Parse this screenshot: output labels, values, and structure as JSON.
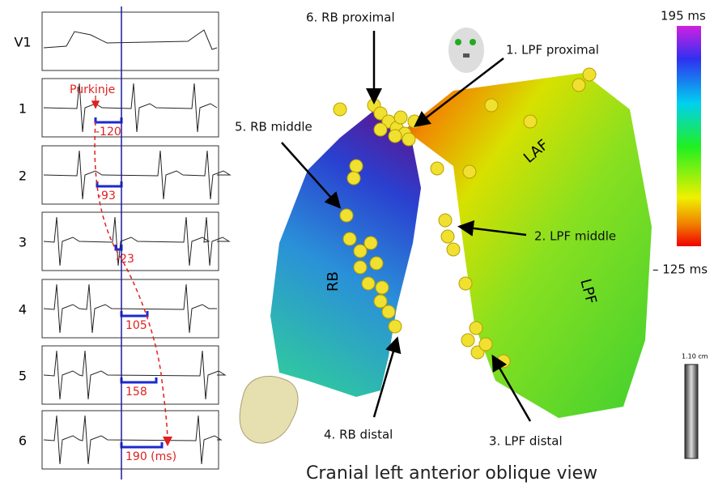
{
  "ecg": {
    "leads": [
      "V1",
      "1",
      "2",
      "3",
      "4",
      "5",
      "6"
    ],
    "marker": "Purkinje",
    "intervals": [
      "-120",
      "-93",
      "-23",
      "105",
      "158",
      "190 (ms)"
    ]
  },
  "map": {
    "labels": [
      "6. RB proximal",
      "1. LPF proximal",
      "5. RB middle",
      "2. LPF middle",
      "3. LPF distal",
      "4. RB distal"
    ],
    "regions": [
      "LAF",
      "LPF",
      "RB"
    ],
    "colorbar": {
      "max": "195 ms",
      "min": "– 125 ms"
    },
    "scale": "1.10 cm",
    "caption": "Cranial left anterior oblique view"
  }
}
